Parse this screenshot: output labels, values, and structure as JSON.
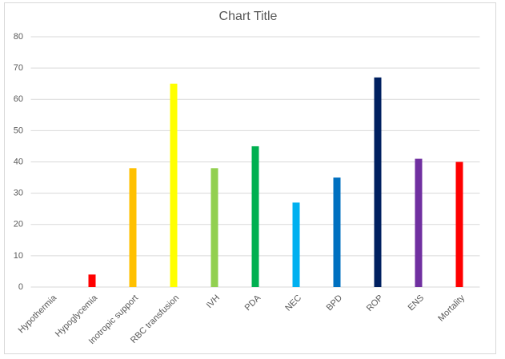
{
  "chart_data": {
    "type": "bar",
    "title": "Chart Title",
    "categories": [
      "Hypothermia",
      "Hypoglycemia",
      "Inotropic support",
      "RBC transfusion",
      "IVH",
      "PDA",
      "NEC",
      "BPD",
      "ROP",
      "ENS",
      "Mortality"
    ],
    "values": [
      0,
      4,
      38,
      65,
      38,
      45,
      27,
      35,
      67,
      41,
      40
    ],
    "colors": [
      "#c00000",
      "#ff0000",
      "#ffc000",
      "#ffff00",
      "#92d050",
      "#00b050",
      "#00b0f0",
      "#0070c0",
      "#002060",
      "#7030a0",
      "#ff0000"
    ],
    "ylim": [
      0,
      80
    ],
    "yticks": [
      0,
      10,
      20,
      30,
      40,
      50,
      60,
      70,
      80
    ],
    "grid": true
  }
}
